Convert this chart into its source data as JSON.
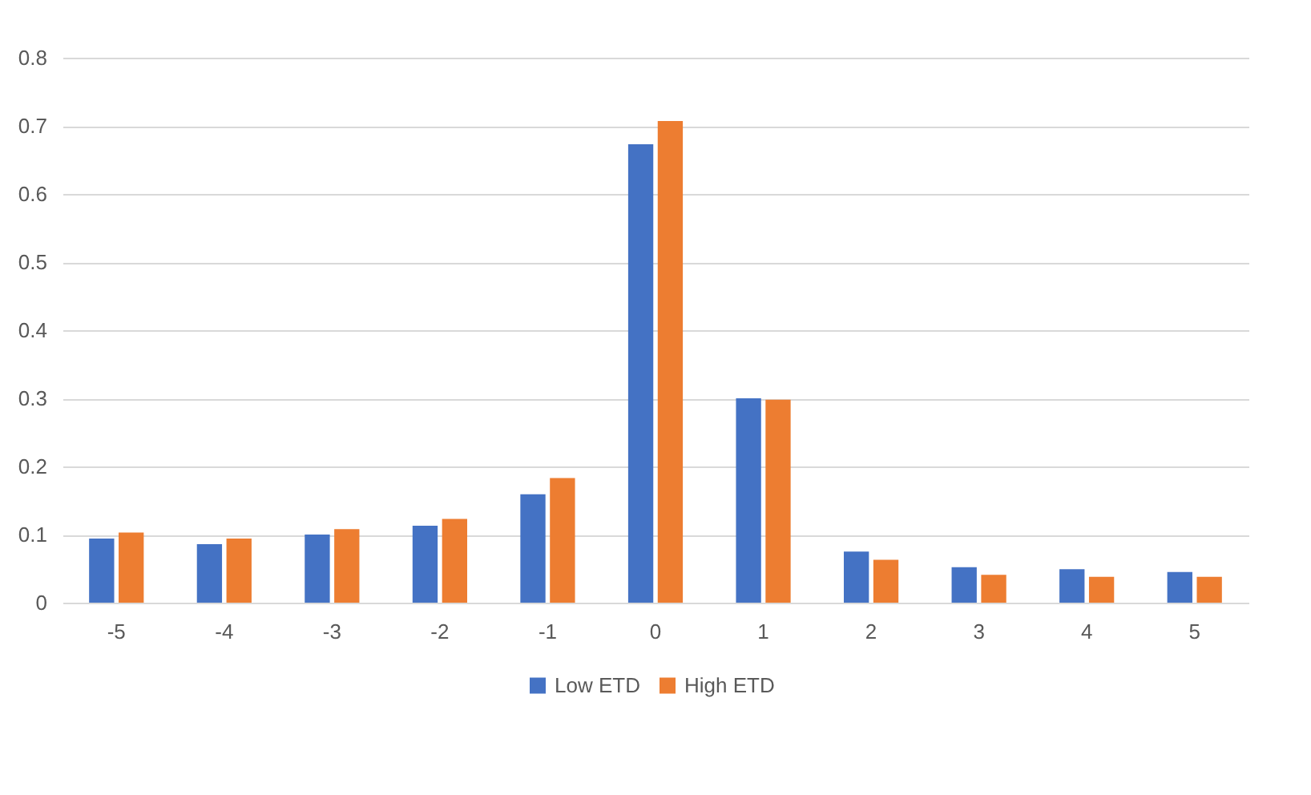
{
  "chart_data": {
    "type": "bar",
    "categories": [
      "-5",
      "-4",
      "-3",
      "-2",
      "-1",
      "0",
      "1",
      "2",
      "3",
      "4",
      "5"
    ],
    "series": [
      {
        "name": "Low ETD",
        "color": "#4472c4",
        "values": [
          0.094,
          0.086,
          0.1,
          0.113,
          0.159,
          0.673,
          0.3,
          0.075,
          0.052,
          0.049,
          0.045
        ]
      },
      {
        "name": "High ETD",
        "color": "#ed7d31",
        "values": [
          0.103,
          0.094,
          0.108,
          0.123,
          0.183,
          0.707,
          0.298,
          0.063,
          0.041,
          0.038,
          0.038
        ]
      }
    ],
    "ylim": [
      0,
      0.8
    ],
    "yticks": [
      0,
      0.1,
      0.2,
      0.3,
      0.4,
      0.5,
      0.6,
      0.7,
      0.8
    ],
    "grid": "y",
    "legend": "bottom"
  }
}
